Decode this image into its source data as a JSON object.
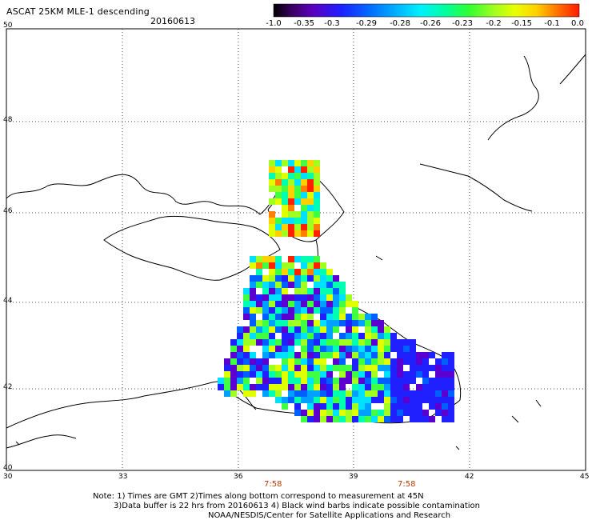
{
  "header": {
    "title": "ASCAT 25KM MLE-1 descending",
    "date": "20160613"
  },
  "colorbar": {
    "labels": [
      "-1.0",
      "-0.35",
      "-0.3",
      "-0.29",
      "-0.28",
      "-0.26",
      "-0.23",
      "-0.2",
      "-0.15",
      "-0.1",
      "0.0"
    ],
    "colors": [
      "#000000",
      "#3a0080",
      "#5b00d0",
      "#2020ff",
      "#0060ff",
      "#00a0ff",
      "#00e0ff",
      "#00ffb0",
      "#40ff40",
      "#a0ff20",
      "#e0ff00",
      "#ffd000",
      "#ff8000",
      "#ff2000"
    ]
  },
  "axes": {
    "lat_labels": [
      "50",
      "48",
      "46",
      "44",
      "42",
      "40"
    ],
    "lon_labels": [
      "30",
      "33",
      "36",
      "39",
      "42",
      "45"
    ],
    "time_labels": [
      "7:58",
      "7:58"
    ]
  },
  "notes": {
    "line1": "Note: 1) Times are GMT 2)Times along bottom correspond to measurement at 45N",
    "line2": "3)Data buffer is 22 hrs from 20160613 4) Black wind barbs indicate possible contamination",
    "line3": "NOAA/NESDIS/Center for Satellite Applications and Research"
  },
  "map": {
    "region": "Black Sea / Sea of Azov",
    "grid_lines": true
  }
}
